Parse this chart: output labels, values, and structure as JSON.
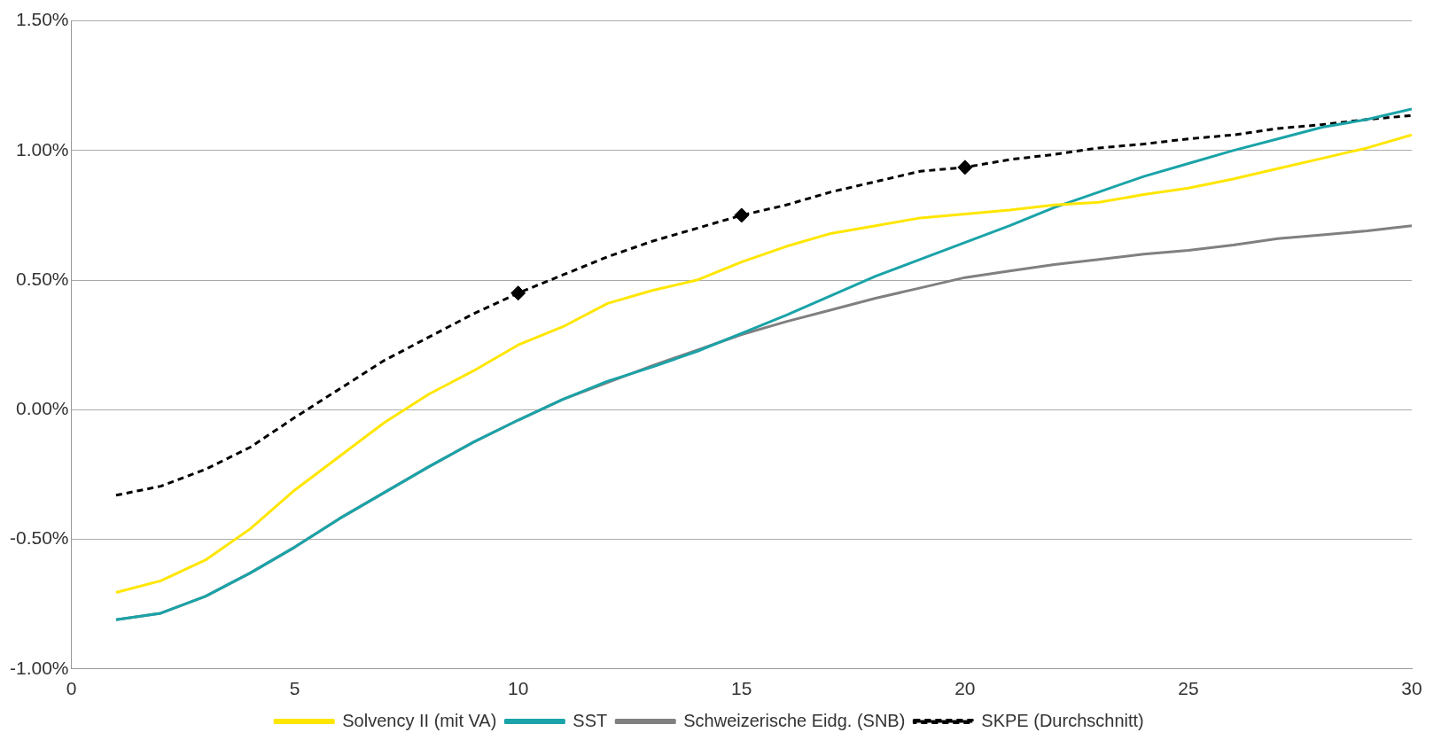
{
  "chart_data": {
    "type": "line",
    "x": [
      1,
      2,
      3,
      4,
      5,
      6,
      7,
      8,
      9,
      10,
      11,
      12,
      13,
      14,
      15,
      16,
      17,
      18,
      19,
      20,
      21,
      22,
      23,
      24,
      25,
      26,
      27,
      28,
      29,
      30
    ],
    "xlim": [
      0,
      30
    ],
    "xticks": [
      0,
      5,
      10,
      15,
      20,
      25,
      30
    ],
    "ylim": [
      -1,
      1.5
    ],
    "yticks": [
      {
        "value": -1,
        "label": "-1.00%"
      },
      {
        "value": -0.5,
        "label": "-0.50%"
      },
      {
        "value": 0,
        "label": "0.00%"
      },
      {
        "value": 0.5,
        "label": "0.50%"
      },
      {
        "value": 1,
        "label": "1.00%"
      },
      {
        "value": 1.5,
        "label": "1.50%"
      }
    ],
    "grid": "y",
    "legend": "bottom",
    "marker": "none",
    "series": [
      {
        "name": "Solvency II (mit VA)",
        "color": "#ffe600",
        "line_style": "solid",
        "values": [
          -0.705,
          -0.66,
          -0.58,
          -0.46,
          -0.31,
          -0.18,
          -0.05,
          0.06,
          0.15,
          0.25,
          0.32,
          0.41,
          0.46,
          0.5,
          0.57,
          0.63,
          0.68,
          0.71,
          0.74,
          0.755,
          0.77,
          0.79,
          0.8,
          0.83,
          0.855,
          0.89,
          0.93,
          0.97,
          1.01,
          1.06
        ]
      },
      {
        "name": "SST",
        "color": "#1aa3a8",
        "line_style": "solid",
        "values": [
          -0.81,
          -0.785,
          -0.72,
          -0.63,
          -0.53,
          -0.42,
          -0.32,
          -0.22,
          -0.125,
          -0.04,
          0.04,
          0.11,
          0.165,
          0.225,
          0.295,
          0.365,
          0.44,
          0.515,
          0.58,
          0.645,
          0.71,
          0.78,
          0.84,
          0.9,
          0.95,
          1.0,
          1.045,
          1.09,
          1.12,
          1.16
        ]
      },
      {
        "name": "Schweizerische Eidg. (SNB)",
        "color": "#808080",
        "line_style": "solid",
        "values": [
          -0.81,
          -0.785,
          -0.72,
          -0.63,
          -0.53,
          -0.42,
          -0.32,
          -0.22,
          -0.125,
          -0.04,
          0.04,
          0.105,
          0.17,
          0.23,
          0.29,
          0.34,
          0.385,
          0.43,
          0.47,
          0.51,
          0.535,
          0.56,
          0.58,
          0.6,
          0.615,
          0.635,
          0.66,
          0.675,
          0.69,
          0.71
        ]
      },
      {
        "name": "SKPE (Durchschnitt)",
        "color": "#000000",
        "line_style": "dashed",
        "values": [
          -0.33,
          -0.295,
          -0.23,
          -0.145,
          -0.03,
          0.08,
          0.19,
          0.28,
          0.37,
          0.45,
          0.52,
          0.59,
          0.65,
          0.7,
          0.75,
          0.79,
          0.84,
          0.88,
          0.92,
          0.935,
          0.965,
          0.985,
          1.01,
          1.025,
          1.045,
          1.06,
          1.085,
          1.1,
          1.12,
          1.135
        ]
      },
      {
        "type": "scatter",
        "marker": "diamond",
        "color": "#000000",
        "x": [
          10,
          15,
          20
        ],
        "values": [
          0.45,
          0.75,
          0.935
        ]
      }
    ]
  }
}
